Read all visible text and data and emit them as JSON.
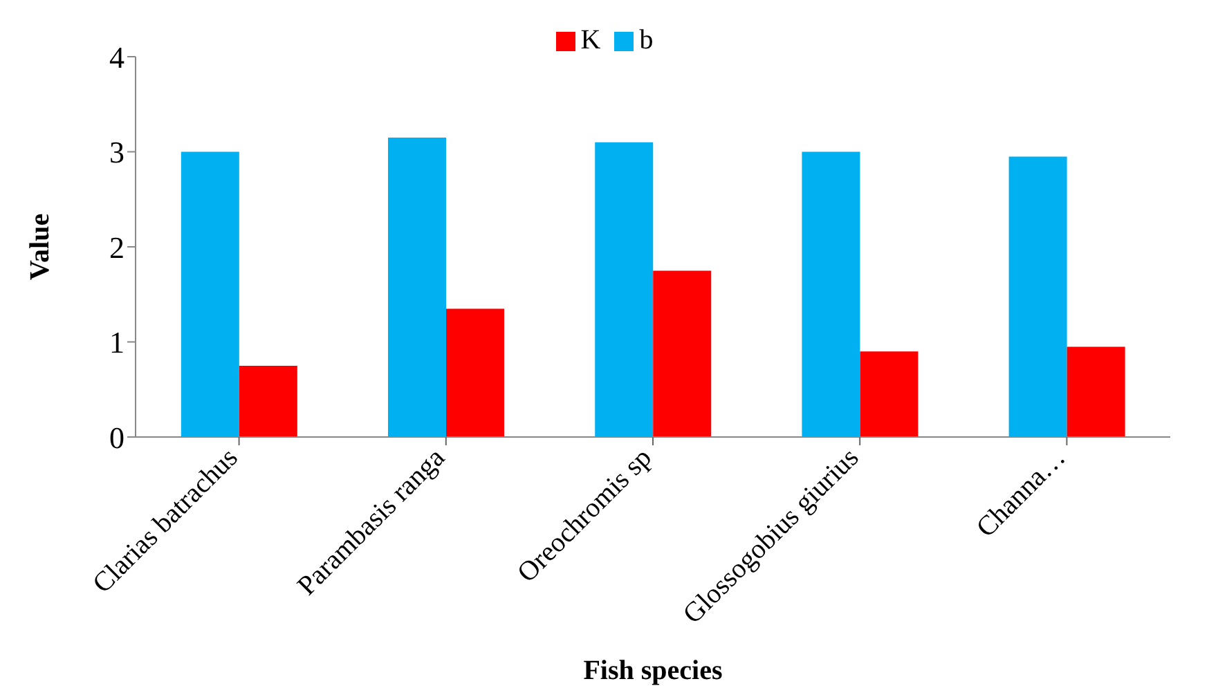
{
  "chart_data": {
    "type": "bar",
    "xlabel": "Fish species",
    "ylabel": "Value",
    "categories": [
      "Clarias batrachus",
      "Parambasis ranga",
      "Oreochromis sp",
      "Glossogobius giurius",
      "Channa…"
    ],
    "series": [
      {
        "name": "b",
        "color": "#00b0f0",
        "values": [
          3.0,
          3.15,
          3.1,
          3.0,
          2.95
        ]
      },
      {
        "name": "K",
        "color": "#ff0000",
        "values": [
          0.75,
          1.35,
          1.75,
          0.9,
          0.95
        ]
      }
    ],
    "ylim": [
      0,
      4
    ],
    "yticks": [
      0,
      1,
      2,
      3,
      4
    ],
    "grid": false,
    "legend": "top"
  }
}
